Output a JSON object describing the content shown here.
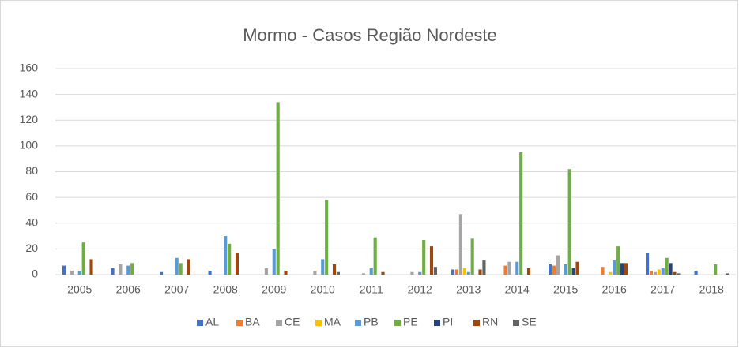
{
  "chart_data": {
    "type": "bar",
    "title": "Mormo - Casos Região Nordeste",
    "categories": [
      "2005",
      "2006",
      "2007",
      "2008",
      "2009",
      "2010",
      "2011",
      "2012",
      "2013",
      "2014",
      "2015",
      "2016",
      "2017",
      "2018"
    ],
    "series": [
      {
        "name": "AL",
        "color": "#4472c4",
        "values": [
          7,
          5,
          2,
          3,
          0,
          0,
          0,
          0,
          4,
          0,
          8,
          0,
          17,
          3
        ]
      },
      {
        "name": "BA",
        "color": "#ed7d31",
        "values": [
          0,
          0,
          0,
          0,
          0,
          0,
          0,
          0,
          4,
          7,
          7,
          6,
          3,
          0
        ]
      },
      {
        "name": "CE",
        "color": "#a5a5a5",
        "values": [
          3,
          8,
          0,
          0,
          5,
          3,
          1,
          2,
          47,
          10,
          15,
          0,
          2,
          0
        ]
      },
      {
        "name": "MA",
        "color": "#ffc000",
        "values": [
          0,
          0,
          0,
          0,
          0,
          0,
          0,
          0,
          5,
          0,
          0,
          2,
          4,
          0
        ]
      },
      {
        "name": "PB",
        "color": "#5b9bd5",
        "values": [
          3,
          7,
          13,
          30,
          20,
          12,
          5,
          2,
          2,
          10,
          8,
          11,
          5,
          0
        ]
      },
      {
        "name": "PE",
        "color": "#70ad47",
        "values": [
          25,
          9,
          9,
          24,
          134,
          58,
          29,
          27,
          28,
          95,
          82,
          22,
          13,
          8
        ]
      },
      {
        "name": "PI",
        "color": "#264478",
        "values": [
          0,
          0,
          0,
          0,
          0,
          0,
          0,
          0,
          0,
          0,
          5,
          9,
          9,
          0
        ]
      },
      {
        "name": "RN",
        "color": "#9e480e",
        "values": [
          12,
          0,
          12,
          17,
          3,
          8,
          2,
          22,
          4,
          5,
          10,
          9,
          2,
          0
        ]
      },
      {
        "name": "SE",
        "color": "#636363",
        "values": [
          0,
          0,
          0,
          0,
          0,
          2,
          0,
          6,
          11,
          0,
          0,
          0,
          1,
          1
        ]
      }
    ],
    "ylim": [
      0,
      160
    ],
    "yticks": [
      0,
      20,
      40,
      60,
      80,
      100,
      120,
      140,
      160
    ],
    "grid": true,
    "legend": "bottom"
  }
}
